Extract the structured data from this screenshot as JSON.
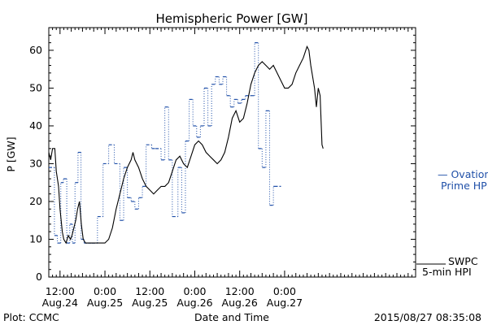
{
  "chart_data": {
    "type": "line",
    "title": "Hemispheric Power [GW]",
    "xlabel": "Date and Time",
    "ylabel": "P [GW]",
    "ylim": [
      0,
      66
    ],
    "xlim_hours": [
      0,
      98
    ],
    "y_ticks": [
      0,
      10,
      20,
      30,
      40,
      50,
      60
    ],
    "x_ticks": [
      {
        "h": 3,
        "line1": "12:00",
        "line2": "Aug.24"
      },
      {
        "h": 15,
        "line1": "0:00",
        "line2": "Aug.25"
      },
      {
        "h": 27,
        "line1": "12:00",
        "line2": "Aug.25"
      },
      {
        "h": 39,
        "line1": "0:00",
        "line2": "Aug.26"
      },
      {
        "h": 51,
        "line1": "12:00",
        "line2": "Aug.26"
      },
      {
        "h": 63,
        "line1": "0:00",
        "line2": "Aug.27"
      }
    ],
    "series": [
      {
        "name": "SWPC 5-min HPI",
        "legend_line1": "SWPC",
        "legend_line2": "5-min HPI",
        "color": "#000000",
        "style": "solid",
        "points": [
          [
            0,
            33
          ],
          [
            0.5,
            31
          ],
          [
            1,
            34
          ],
          [
            1.6,
            34
          ],
          [
            2,
            28
          ],
          [
            2.6,
            24
          ],
          [
            3,
            18
          ],
          [
            3.6,
            12
          ],
          [
            4,
            10
          ],
          [
            4.6,
            9
          ],
          [
            5.2,
            11
          ],
          [
            5.8,
            10
          ],
          [
            6.2,
            11
          ],
          [
            6.7,
            13
          ],
          [
            7.2,
            15
          ],
          [
            7.7,
            18
          ],
          [
            8.2,
            20
          ],
          [
            8.7,
            14
          ],
          [
            9.2,
            10
          ],
          [
            9.8,
            9
          ],
          [
            10.5,
            9
          ],
          [
            11,
            9
          ],
          [
            12,
            9
          ],
          [
            13,
            9
          ],
          [
            14,
            9
          ],
          [
            15,
            9
          ],
          [
            16,
            10
          ],
          [
            17,
            13
          ],
          [
            18,
            18
          ],
          [
            19,
            22
          ],
          [
            20,
            26
          ],
          [
            21,
            29
          ],
          [
            22,
            31
          ],
          [
            22.5,
            33
          ],
          [
            23,
            31
          ],
          [
            24,
            29
          ],
          [
            25,
            26
          ],
          [
            26,
            24
          ],
          [
            27,
            23
          ],
          [
            28,
            22
          ],
          [
            29,
            23
          ],
          [
            30,
            24
          ],
          [
            31,
            24
          ],
          [
            32,
            25
          ],
          [
            33,
            28
          ],
          [
            34,
            31
          ],
          [
            35,
            32
          ],
          [
            36,
            30
          ],
          [
            37,
            29
          ],
          [
            38,
            32
          ],
          [
            39,
            35
          ],
          [
            40,
            36
          ],
          [
            41,
            35
          ],
          [
            42,
            33
          ],
          [
            43,
            32
          ],
          [
            44,
            31
          ],
          [
            45,
            30
          ],
          [
            46,
            31
          ],
          [
            47,
            33
          ],
          [
            48,
            37
          ],
          [
            49,
            42
          ],
          [
            50,
            44
          ],
          [
            51,
            41
          ],
          [
            52,
            42
          ],
          [
            53,
            46
          ],
          [
            54,
            51
          ],
          [
            55,
            54
          ],
          [
            56,
            56
          ],
          [
            57,
            57
          ],
          [
            58,
            56
          ],
          [
            59,
            55
          ],
          [
            60,
            56
          ],
          [
            61,
            54
          ],
          [
            62,
            52
          ],
          [
            63,
            50
          ],
          [
            64,
            50
          ],
          [
            65,
            51
          ],
          [
            66,
            54
          ],
          [
            67,
            56
          ],
          [
            68,
            58
          ],
          [
            69,
            61
          ],
          [
            69.5,
            60
          ],
          [
            70,
            56
          ],
          [
            71,
            50
          ],
          [
            71.5,
            45
          ],
          [
            72,
            50
          ],
          [
            72.5,
            48
          ],
          [
            73,
            35
          ],
          [
            73.3,
            34
          ]
        ]
      },
      {
        "name": "Ovation Prime HPI",
        "legend_line1": "— Ovation",
        "legend_line2": "Prime HPI",
        "color": "#1f4fa8",
        "style": "step-dotted",
        "steps": [
          [
            0,
            29
          ],
          [
            1.5,
            11
          ],
          [
            2.3,
            9
          ],
          [
            3.2,
            25
          ],
          [
            3.9,
            26
          ],
          [
            4.8,
            9
          ],
          [
            5.6,
            14
          ],
          [
            6.3,
            9
          ],
          [
            7,
            25
          ],
          [
            7.8,
            33
          ],
          [
            8.6,
            10
          ],
          [
            9.4,
            9
          ],
          [
            10.5,
            9
          ],
          [
            11.5,
            9
          ],
          [
            13,
            16
          ],
          [
            14.5,
            30
          ],
          [
            16,
            35
          ],
          [
            17.5,
            30
          ],
          [
            19,
            15
          ],
          [
            20,
            29
          ],
          [
            21,
            21
          ],
          [
            22,
            20
          ],
          [
            23,
            18
          ],
          [
            24,
            21
          ],
          [
            25,
            24
          ],
          [
            26,
            35
          ],
          [
            27.5,
            34
          ],
          [
            28.5,
            34
          ],
          [
            30,
            31
          ],
          [
            31,
            45
          ],
          [
            32,
            31
          ],
          [
            33,
            16
          ],
          [
            34.5,
            29
          ],
          [
            35.5,
            17
          ],
          [
            36.5,
            36
          ],
          [
            37.5,
            47
          ],
          [
            38.5,
            40
          ],
          [
            39.5,
            37
          ],
          [
            40.5,
            40
          ],
          [
            41.5,
            50
          ],
          [
            42.5,
            40
          ],
          [
            43.5,
            51
          ],
          [
            44.5,
            53
          ],
          [
            45.5,
            51
          ],
          [
            46.5,
            53
          ],
          [
            47.5,
            48
          ],
          [
            48.5,
            45
          ],
          [
            49.5,
            47
          ],
          [
            50.5,
            46
          ],
          [
            51.5,
            47
          ],
          [
            52.5,
            48
          ],
          [
            54,
            48
          ],
          [
            55,
            62
          ],
          [
            56,
            34
          ],
          [
            57,
            29
          ],
          [
            58,
            44
          ],
          [
            59,
            19
          ],
          [
            60,
            24
          ],
          [
            60.3,
            24
          ]
        ]
      }
    ]
  },
  "legend_ovation_line1": "— Ovation",
  "legend_ovation_line2": "Prime HPI",
  "legend_swpc_line1": "SWPC",
  "legend_swpc_line2": "5-min HPI",
  "footer": {
    "left": "Plot: CCMC",
    "center": "Date and Time",
    "right": "2015/08/27 08:35:08"
  }
}
